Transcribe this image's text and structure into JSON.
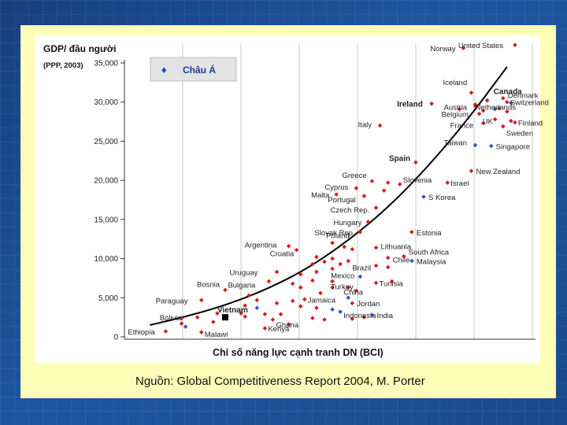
{
  "source": "Nguồn: Global Competitiveness Report 2004, M. Porter",
  "chart_data": {
    "type": "scatter",
    "ylabel": "GDP/ đầu người",
    "ylabel_sub": "(PPP, 2003)",
    "xlabel": "Chỉ số năng lực cạnh tranh DN (BCI)",
    "ylim": [
      0,
      35000
    ],
    "y_ticks": [
      "0",
      "5,000",
      "10,000",
      "15,000",
      "20,000",
      "25,000",
      "30,000",
      "35,000"
    ],
    "x_range": [
      0,
      100
    ],
    "grid": "vertical",
    "legend": {
      "label": "Châu Á",
      "position": "top-left",
      "symbol": "♦"
    },
    "trend": [
      [
        6,
        1500
      ],
      [
        16,
        2700
      ],
      [
        26,
        4200
      ],
      [
        36,
        6200
      ],
      [
        46,
        8800
      ],
      [
        56,
        12300
      ],
      [
        66,
        16500
      ],
      [
        76,
        21700
      ],
      [
        86,
        27700
      ],
      [
        96,
        34500
      ]
    ],
    "points": [
      {
        "label": "Norway",
        "x": 85,
        "y": 36900,
        "group": "other"
      },
      {
        "label": "United States",
        "x": 98,
        "y": 37300,
        "group": "other"
      },
      {
        "label": "Iceland",
        "x": 87,
        "y": 31200,
        "group": "other"
      },
      {
        "label": "Canada",
        "x": 91,
        "y": 30200,
        "group": "other",
        "bold": true
      },
      {
        "label": "Ireland",
        "x": 77,
        "y": 29800,
        "group": "other",
        "bold": true
      },
      {
        "label": "Austria",
        "x": 88,
        "y": 29500,
        "group": "other"
      },
      {
        "label": "Belgium",
        "x": 89,
        "y": 28500,
        "group": "other"
      },
      {
        "label": "France",
        "x": 90,
        "y": 27300,
        "group": "other"
      },
      {
        "label": "Denmark",
        "x": 95,
        "y": 30500,
        "group": "other"
      },
      {
        "label": "Switzerland",
        "x": 96,
        "y": 30000,
        "group": "other"
      },
      {
        "label": "Netherlands",
        "x": 94,
        "y": 29200,
        "group": "other"
      },
      {
        "label": "Finland",
        "x": 98,
        "y": 27400,
        "group": "other"
      },
      {
        "label": "UK",
        "x": 93,
        "y": 27800,
        "group": "other"
      },
      {
        "label": "Sweden",
        "x": 95,
        "y": 26900,
        "group": "other"
      },
      {
        "label": "Italy",
        "x": 64,
        "y": 27000,
        "group": "other"
      },
      {
        "label": "Taiwan",
        "x": 88,
        "y": 24500,
        "group": "asia"
      },
      {
        "label": "Singapore",
        "x": 92,
        "y": 24400,
        "group": "asia"
      },
      {
        "label": "Spain",
        "x": 73,
        "y": 22300,
        "group": "other",
        "bold": true
      },
      {
        "label": "New Zealand",
        "x": 87,
        "y": 21200,
        "group": "other"
      },
      {
        "label": "Israel",
        "x": 81,
        "y": 19700,
        "group": "other"
      },
      {
        "label": "Greece",
        "x": 62,
        "y": 19900,
        "group": "other"
      },
      {
        "label": "Slovenia",
        "x": 69,
        "y": 19500,
        "group": "other"
      },
      {
        "label": "Cyprus",
        "x": 58,
        "y": 19000,
        "group": "other"
      },
      {
        "label": "Malta",
        "x": 53,
        "y": 18200,
        "group": "other"
      },
      {
        "label": "Portugal",
        "x": 60,
        "y": 18000,
        "group": "other"
      },
      {
        "label": "S Korea",
        "x": 75,
        "y": 17900,
        "group": "asia"
      },
      {
        "label": "Czech Rep.",
        "x": 63,
        "y": 16500,
        "group": "other"
      },
      {
        "label": "Hungary",
        "x": 61,
        "y": 14700,
        "group": "other"
      },
      {
        "label": "Slovak Rep.",
        "x": 59,
        "y": 13400,
        "group": "other"
      },
      {
        "label": "Estonia",
        "x": 72,
        "y": 13400,
        "group": "other"
      },
      {
        "label": "Poland",
        "x": 52,
        "y": 12000,
        "group": "other"
      },
      {
        "label": "Argentina",
        "x": 41,
        "y": 11600,
        "group": "other"
      },
      {
        "label": "Croatia",
        "x": 43,
        "y": 11100,
        "group": "other"
      },
      {
        "label": "Lithuania",
        "x": 63,
        "y": 11400,
        "group": "other"
      },
      {
        "label": "South Africa",
        "x": 70,
        "y": 10300,
        "group": "other"
      },
      {
        "label": "Chile",
        "x": 66,
        "y": 10100,
        "group": "other"
      },
      {
        "label": "Malaysia",
        "x": 72,
        "y": 9700,
        "group": "asia"
      },
      {
        "label": "Uruguay",
        "x": 38,
        "y": 8300,
        "group": "other"
      },
      {
        "label": "Bulgaria",
        "x": 36,
        "y": 7100,
        "group": "other"
      },
      {
        "label": "Mexico",
        "x": 52,
        "y": 8700,
        "group": "other"
      },
      {
        "label": "Turkey",
        "x": 52,
        "y": 7100,
        "group": "other"
      },
      {
        "label": "Brazil",
        "x": 59,
        "y": 7700,
        "group": "asia"
      },
      {
        "label": "Tunisia",
        "x": 63,
        "y": 6900,
        "group": "other"
      },
      {
        "label": "Bosnia",
        "x": 25,
        "y": 6000,
        "group": "other"
      },
      {
        "label": "Paraguay",
        "x": 19,
        "y": 4700,
        "group": "other"
      },
      {
        "label": "Jamaica",
        "x": 45,
        "y": 4800,
        "group": "other"
      },
      {
        "label": "China",
        "x": 56,
        "y": 5000,
        "group": "asia"
      },
      {
        "label": "Jordan",
        "x": 57,
        "y": 4300,
        "group": "other"
      },
      {
        "label": "Bolivia",
        "x": 18,
        "y": 2500,
        "group": "other"
      },
      {
        "label": "Vietnam",
        "x": 25,
        "y": 2500,
        "group": "vietnam"
      },
      {
        "label": "Ghana",
        "x": 37,
        "y": 2200,
        "group": "other"
      },
      {
        "label": "Indonesia",
        "x": 54,
        "y": 3200,
        "group": "asia"
      },
      {
        "label": "India",
        "x": 62,
        "y": 2800,
        "group": "asia"
      },
      {
        "label": "Ethiopia",
        "x": 10,
        "y": 700,
        "group": "other"
      },
      {
        "label": "Malawi",
        "x": 19,
        "y": 600,
        "group": "other"
      },
      {
        "label": "Kenya",
        "x": 35,
        "y": 1100,
        "group": "other"
      }
    ],
    "extra_points": [
      {
        "x": 88,
        "y": 29700,
        "group": "other"
      },
      {
        "x": 90,
        "y": 28900,
        "group": "other"
      },
      {
        "x": 96,
        "y": 28800,
        "group": "other"
      },
      {
        "x": 97,
        "y": 27600,
        "group": "other"
      },
      {
        "x": 84,
        "y": 29100,
        "group": "other"
      },
      {
        "x": 97,
        "y": 29900,
        "group": "asia"
      },
      {
        "x": 93,
        "y": 29100,
        "group": "asia"
      },
      {
        "x": 66,
        "y": 19700,
        "group": "other"
      },
      {
        "x": 65,
        "y": 18700,
        "group": "other"
      },
      {
        "x": 57,
        "y": 11200,
        "group": "other"
      },
      {
        "x": 55,
        "y": 11500,
        "group": "other"
      },
      {
        "x": 48,
        "y": 10200,
        "group": "other"
      },
      {
        "x": 52,
        "y": 10000,
        "group": "other"
      },
      {
        "x": 47,
        "y": 9300,
        "group": "other"
      },
      {
        "x": 50,
        "y": 9600,
        "group": "other"
      },
      {
        "x": 54,
        "y": 9300,
        "group": "other"
      },
      {
        "x": 56,
        "y": 9700,
        "group": "other"
      },
      {
        "x": 44,
        "y": 8000,
        "group": "other"
      },
      {
        "x": 48,
        "y": 8300,
        "group": "other"
      },
      {
        "x": 47,
        "y": 7200,
        "group": "other"
      },
      {
        "x": 42,
        "y": 6800,
        "group": "other"
      },
      {
        "x": 44,
        "y": 6300,
        "group": "other"
      },
      {
        "x": 49,
        "y": 5600,
        "group": "other"
      },
      {
        "x": 52,
        "y": 6300,
        "group": "other"
      },
      {
        "x": 56,
        "y": 6300,
        "group": "other"
      },
      {
        "x": 63,
        "y": 9100,
        "group": "other"
      },
      {
        "x": 67,
        "y": 7100,
        "group": "other"
      },
      {
        "x": 66,
        "y": 8900,
        "group": "other"
      },
      {
        "x": 58,
        "y": 5900,
        "group": "other"
      },
      {
        "x": 31,
        "y": 5300,
        "group": "other"
      },
      {
        "x": 30,
        "y": 4000,
        "group": "other"
      },
      {
        "x": 29,
        "y": 3000,
        "group": "other"
      },
      {
        "x": 33,
        "y": 4700,
        "group": "other"
      },
      {
        "x": 38,
        "y": 4300,
        "group": "other"
      },
      {
        "x": 42,
        "y": 4600,
        "group": "other"
      },
      {
        "x": 44,
        "y": 3900,
        "group": "other"
      },
      {
        "x": 48,
        "y": 3700,
        "group": "other"
      },
      {
        "x": 47,
        "y": 2400,
        "group": "other"
      },
      {
        "x": 50,
        "y": 2200,
        "group": "other"
      },
      {
        "x": 41,
        "y": 1600,
        "group": "other"
      },
      {
        "x": 39,
        "y": 2900,
        "group": "other"
      },
      {
        "x": 35,
        "y": 2900,
        "group": "other"
      },
      {
        "x": 23,
        "y": 3000,
        "group": "other"
      },
      {
        "x": 22,
        "y": 1900,
        "group": "other"
      },
      {
        "x": 14,
        "y": 1700,
        "group": "other"
      },
      {
        "x": 14,
        "y": 2400,
        "group": "other"
      },
      {
        "x": 15,
        "y": 1300,
        "group": "asia"
      },
      {
        "x": 30,
        "y": 2600,
        "group": "other"
      },
      {
        "x": 33,
        "y": 3700,
        "group": "asia"
      },
      {
        "x": 57,
        "y": 2300,
        "group": "other"
      },
      {
        "x": 60,
        "y": 2500,
        "group": "other"
      },
      {
        "x": 52,
        "y": 3500,
        "group": "asia"
      }
    ]
  }
}
